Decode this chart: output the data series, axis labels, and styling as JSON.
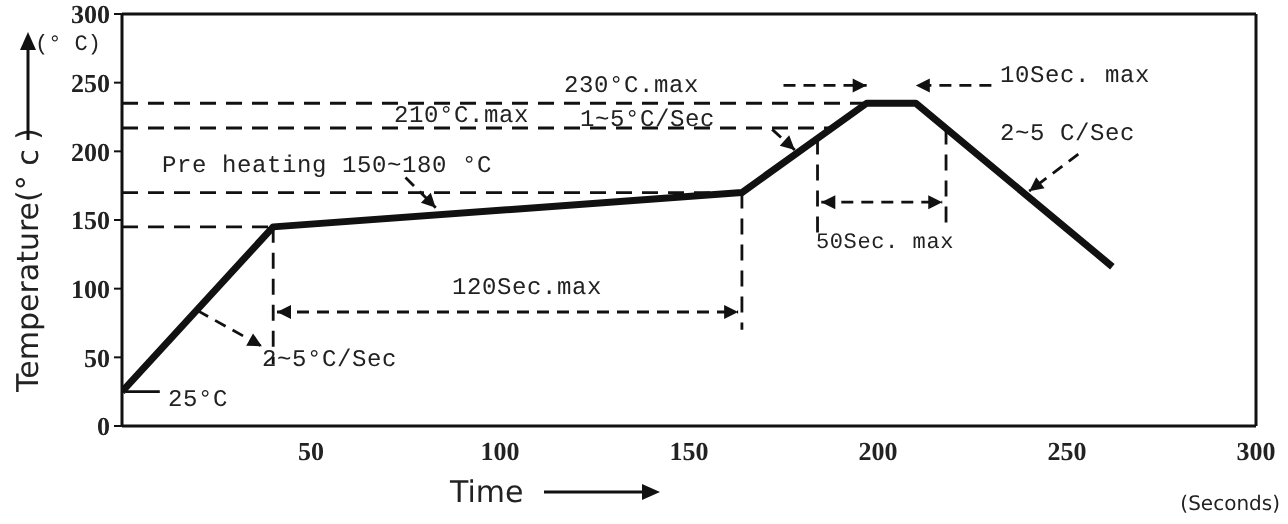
{
  "chart_data": {
    "type": "line",
    "xlabel": "Time",
    "ylabel": "Temperature(° c )",
    "x": [
      0,
      40,
      164,
      197,
      210,
      262
    ],
    "series": [
      {
        "color": "#111111",
        "values": [
          25,
          145,
          170,
          235,
          235,
          116
        ]
      }
    ],
    "xlim": [
      0,
      300
    ],
    "xticks": [
      50,
      100,
      150,
      200,
      250,
      300
    ],
    "ylim": [
      0,
      300
    ],
    "yticks": [
      0,
      50,
      100,
      150,
      200,
      250,
      300
    ],
    "marker": "none",
    "line_style": "solid",
    "ref_lines": [
      {
        "axis": "y",
        "value": 145,
        "line_style": "dashed"
      },
      {
        "axis": "y",
        "value": 170,
        "line_style": "dashed"
      },
      {
        "axis": "y",
        "value": 217,
        "line_style": "dashed"
      },
      {
        "axis": "y",
        "value": 235,
        "line_style": "dashed"
      },
      {
        "axis": "x",
        "value": 40,
        "line_style": "dashed"
      },
      {
        "axis": "x",
        "value": 164,
        "line_style": "dashed"
      },
      {
        "axis": "x",
        "value": 184,
        "line_style": "dashed"
      },
      {
        "axis": "x",
        "value": 218,
        "line_style": "dashed"
      }
    ],
    "annotations": [
      "(° C)",
      "(Seconds)",
      "230°C.max",
      "210°C.max",
      "1~5°C/Sec",
      "Pre heating 150~180 °C",
      "120Sec.max",
      "2~5°C/Sec",
      "25°C",
      "10Sec. max",
      "50Sec. max",
      "2~5 C/Sec"
    ]
  }
}
